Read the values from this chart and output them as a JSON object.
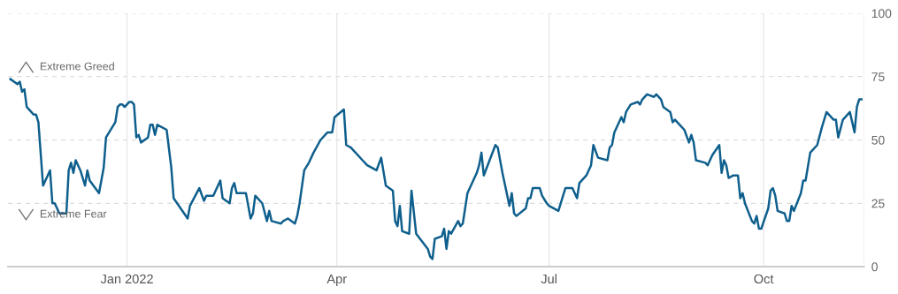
{
  "chart_data": {
    "type": "line",
    "x": [
      "2021-11-12",
      "2021-11-15",
      "2021-11-16",
      "2021-11-17",
      "2021-11-18",
      "2021-11-19",
      "2021-11-22",
      "2021-11-23",
      "2021-11-24",
      "2021-11-26",
      "2021-11-29",
      "2021-11-30",
      "2021-12-01",
      "2021-12-03",
      "2021-12-06",
      "2021-12-07",
      "2021-12-08",
      "2021-12-09",
      "2021-12-10",
      "2021-12-12",
      "2021-12-14",
      "2021-12-15",
      "2021-12-16",
      "2021-12-20",
      "2021-12-22",
      "2021-12-23",
      "2021-12-27",
      "2021-12-28",
      "2021-12-29",
      "2021-12-30",
      "2021-12-31",
      "2022-01-02",
      "2022-01-03",
      "2022-01-04",
      "2022-01-05",
      "2022-01-06",
      "2022-01-07",
      "2022-01-10",
      "2022-01-11",
      "2022-01-12",
      "2022-01-13",
      "2022-01-14",
      "2022-01-18",
      "2022-01-20",
      "2022-01-21",
      "2022-01-24",
      "2022-01-27",
      "2022-01-28",
      "2022-02-01",
      "2022-02-03",
      "2022-02-04",
      "2022-02-07",
      "2022-02-10",
      "2022-02-11",
      "2022-02-14",
      "2022-02-15",
      "2022-02-16",
      "2022-02-17",
      "2022-02-21",
      "2022-02-23",
      "2022-02-24",
      "2022-02-25",
      "2022-02-28",
      "2022-03-02",
      "2022-03-03",
      "2022-03-04",
      "2022-03-08",
      "2022-03-09",
      "2022-03-11",
      "2022-03-14",
      "2022-03-15",
      "2022-03-16",
      "2022-03-18",
      "2022-03-20",
      "2022-03-22",
      "2022-03-25",
      "2022-03-28",
      "2022-03-30",
      "2022-03-31",
      "2022-04-04",
      "2022-04-05",
      "2022-04-07",
      "2022-04-12",
      "2022-04-14",
      "2022-04-18",
      "2022-04-20",
      "2022-04-22",
      "2022-04-25",
      "2022-04-26",
      "2022-04-27",
      "2022-04-28",
      "2022-04-29",
      "2022-05-02",
      "2022-05-03",
      "2022-05-05",
      "2022-05-10",
      "2022-05-11",
      "2022-05-12",
      "2022-05-13",
      "2022-05-16",
      "2022-05-17",
      "2022-05-18",
      "2022-05-19",
      "2022-05-20",
      "2022-05-23",
      "2022-05-24",
      "2022-05-25",
      "2022-05-27",
      "2022-05-31",
      "2022-06-01",
      "2022-06-02",
      "2022-06-03",
      "2022-06-08",
      "2022-06-09",
      "2022-06-11",
      "2022-06-14",
      "2022-06-15",
      "2022-06-16",
      "2022-06-17",
      "2022-06-21",
      "2022-06-22",
      "2022-06-23",
      "2022-06-24",
      "2022-06-27",
      "2022-06-28",
      "2022-06-30",
      "2022-07-01",
      "2022-07-05",
      "2022-07-08",
      "2022-07-11",
      "2022-07-13",
      "2022-07-14",
      "2022-07-17",
      "2022-07-19",
      "2022-07-20",
      "2022-07-22",
      "2022-07-26",
      "2022-07-27",
      "2022-07-28",
      "2022-07-29",
      "2022-08-01",
      "2022-08-02",
      "2022-08-03",
      "2022-08-05",
      "2022-08-08",
      "2022-08-09",
      "2022-08-10",
      "2022-08-12",
      "2022-08-15",
      "2022-08-16",
      "2022-08-18",
      "2022-08-19",
      "2022-08-22",
      "2022-08-23",
      "2022-08-24",
      "2022-08-26",
      "2022-08-28",
      "2022-08-30",
      "2022-08-31",
      "2022-09-01",
      "2022-09-02",
      "2022-09-06",
      "2022-09-07",
      "2022-09-09",
      "2022-09-12",
      "2022-09-13",
      "2022-09-14",
      "2022-09-15",
      "2022-09-16",
      "2022-09-18",
      "2022-09-20",
      "2022-09-21",
      "2022-09-22",
      "2022-09-23",
      "2022-09-26",
      "2022-09-27",
      "2022-09-28",
      "2022-09-29",
      "2022-09-30",
      "2022-10-03",
      "2022-10-04",
      "2022-10-05",
      "2022-10-06",
      "2022-10-07",
      "2022-10-10",
      "2022-10-11",
      "2022-10-12",
      "2022-10-13",
      "2022-10-14",
      "2022-10-17",
      "2022-10-18",
      "2022-10-19",
      "2022-10-21",
      "2022-10-24",
      "2022-10-26",
      "2022-10-28",
      "2022-10-31",
      "2022-11-01",
      "2022-11-02",
      "2022-11-04",
      "2022-11-07",
      "2022-11-09",
      "2022-11-10",
      "2022-11-11",
      "2022-11-12"
    ],
    "series": [
      {
        "color": "#0f5f8d",
        "values": [
          74,
          72,
          73,
          69,
          70,
          63,
          60,
          60,
          57,
          32,
          38,
          25,
          25,
          21,
          21,
          38,
          41,
          37,
          42,
          38,
          32,
          38,
          34,
          29,
          39,
          51,
          57,
          63,
          64,
          64,
          63,
          65,
          65,
          64,
          51,
          52,
          49,
          51,
          56,
          56,
          52,
          56,
          54,
          39,
          27,
          23,
          19,
          24,
          31,
          26,
          28,
          28,
          34,
          27,
          25,
          31,
          33,
          29,
          29,
          19,
          21,
          28,
          25,
          18,
          22,
          18,
          17,
          18,
          19,
          17,
          20,
          25,
          38,
          41,
          45,
          50,
          53,
          53,
          59,
          62,
          48,
          47,
          42,
          40,
          38,
          43,
          32,
          30,
          18,
          16,
          24,
          14,
          13,
          30,
          13,
          7,
          4,
          3,
          11,
          12,
          15,
          7,
          14,
          13,
          18,
          16,
          17,
          29,
          37,
          40,
          45,
          36,
          48,
          47,
          37,
          24,
          29,
          21,
          20,
          23,
          27,
          27,
          31,
          31,
          28,
          25,
          24,
          22,
          31,
          31,
          27,
          33,
          36,
          40,
          48,
          43,
          42,
          47,
          48,
          53,
          59,
          57,
          61,
          64,
          65,
          64,
          66,
          68,
          67,
          68,
          66,
          63,
          61,
          57,
          58,
          56,
          54,
          49,
          52,
          49,
          42,
          41,
          40,
          44,
          48,
          37,
          42,
          40,
          35,
          36,
          36,
          27,
          29,
          25,
          18,
          17,
          20,
          15,
          15,
          23,
          30,
          31,
          28,
          22,
          21,
          18,
          18,
          24,
          22,
          29,
          34,
          34,
          45,
          48,
          55,
          61,
          58,
          58,
          51,
          58,
          61,
          53,
          63,
          66,
          66
        ]
      }
    ],
    "xlim": [
      "2021-11-11",
      "2022-11-13"
    ],
    "xticks": [
      {
        "value": "2022-01-01",
        "label": "Jan 2022"
      },
      {
        "value": "2022-04-01",
        "label": "Apr"
      },
      {
        "value": "2022-07-01",
        "label": "Jul"
      },
      {
        "value": "2022-10-01",
        "label": "Oct"
      }
    ],
    "ylim": [
      0,
      100
    ],
    "yticks": [
      0,
      25,
      50,
      75,
      100
    ],
    "grid": true,
    "marker": "none",
    "line_style": "solid",
    "annotations": [
      "Extreme Greed",
      "Extreme Fear"
    ]
  }
}
